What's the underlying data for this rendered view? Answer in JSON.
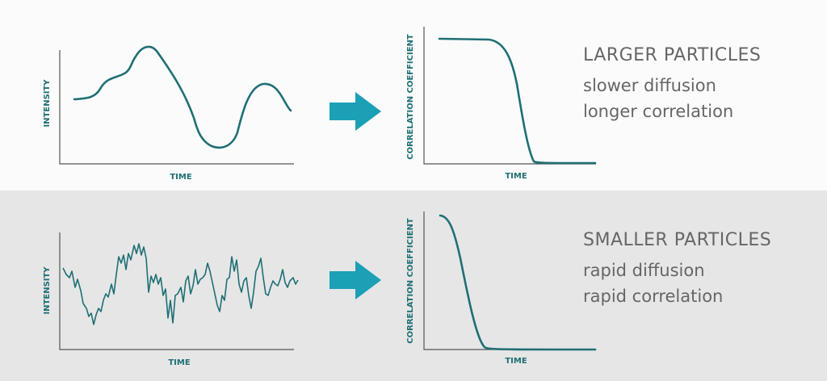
{
  "top": {
    "intensity_chart": {
      "xlabel": "TIME",
      "ylabel": "INTENSITY",
      "pattern": "slow fluctuation"
    },
    "correlation_chart": {
      "xlabel": "TIME",
      "ylabel": "CORRELATION COEFFICIENT",
      "decay": "slow"
    },
    "title": "LARGER PARTICLES",
    "line1": "slower diffusion",
    "line2": "longer correlation"
  },
  "bottom": {
    "intensity_chart": {
      "xlabel": "TIME",
      "ylabel": "INTENSITY",
      "pattern": "rapid fluctuation"
    },
    "correlation_chart": {
      "xlabel": "TIME",
      "ylabel": "CORRELATION COEFFICIENT",
      "decay": "rapid"
    },
    "title": "SMALLER PARTICLES",
    "line1": "rapid diffusion",
    "line2": "rapid correlation"
  },
  "colors": {
    "curve": "#1f6f74",
    "arrow": "#1ba0b5",
    "text": "#666666",
    "panel_top": "#fbfbfb",
    "panel_bottom": "#e6e6e6"
  },
  "icons": {
    "arrow": "right-arrow-icon"
  }
}
